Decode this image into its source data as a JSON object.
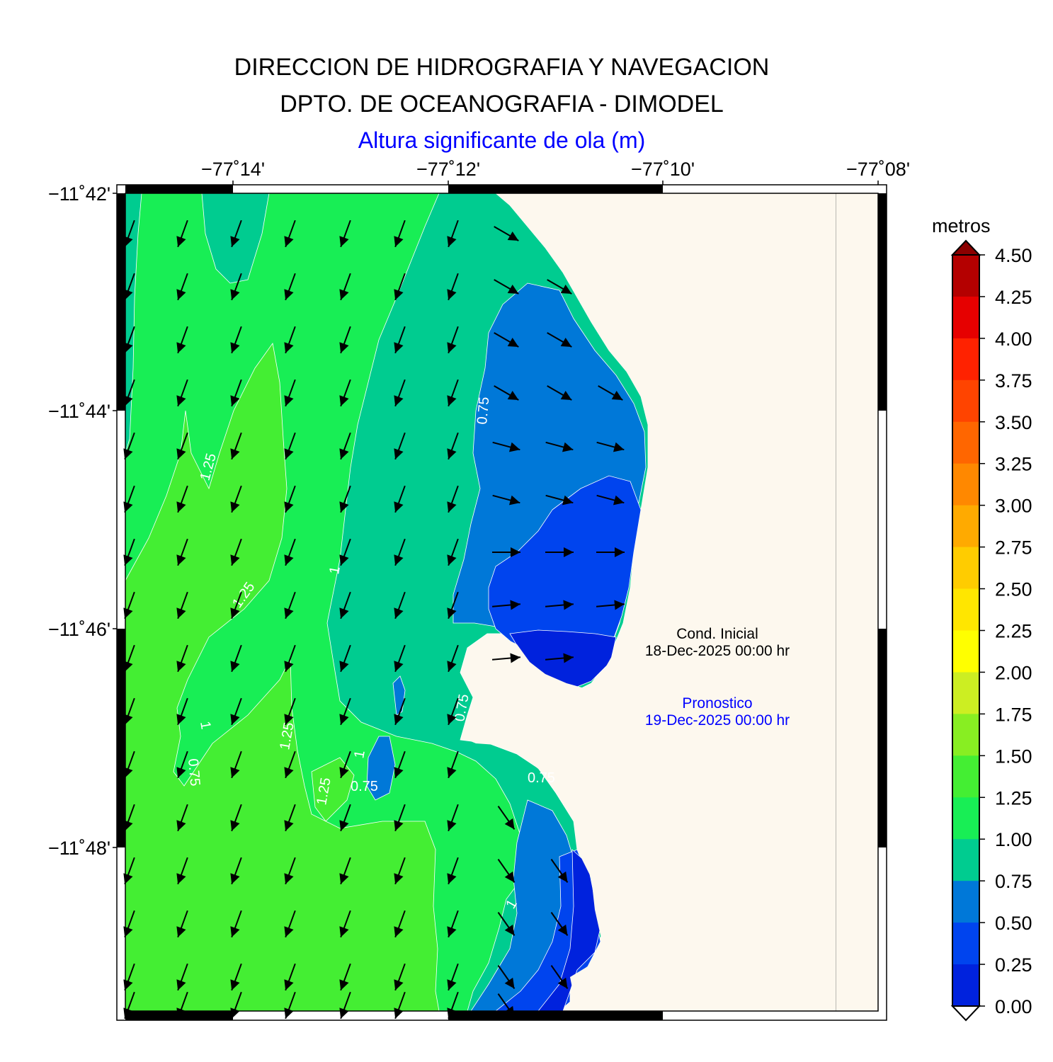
{
  "titles": {
    "line1": "DIRECCION DE HIDROGRAFIA Y NAVEGACION",
    "line2": "DPTO. DE OCEANOGRAFIA - DIMODEL",
    "line3": "Altura significante de ola (m)"
  },
  "axes": {
    "lon_ticks": [
      "−77˚14'",
      "−77˚12'",
      "−77˚10'",
      "−77˚08'"
    ],
    "lat_ticks": [
      "−11˚42'",
      "−11˚44'",
      "−11˚46'",
      "−11˚48'"
    ]
  },
  "info": {
    "initial_label": "Cond. Inicial",
    "initial_date": "18-Dec-2025 00:00 hr",
    "forecast_label": "Pronostico",
    "forecast_date": "19-Dec-2025 00:00 hr"
  },
  "colorbar": {
    "units": "metros",
    "labels": [
      "4.50",
      "4.25",
      "4.00",
      "3.75",
      "3.50",
      "3.25",
      "3.00",
      "2.75",
      "2.50",
      "2.25",
      "2.00",
      "1.75",
      "1.50",
      "1.25",
      "1.00",
      "0.75",
      "0.50",
      "0.25",
      "0.00"
    ],
    "colors": [
      "#b40000",
      "#e60000",
      "#ff2200",
      "#ff4400",
      "#ff6600",
      "#ff8800",
      "#ffaa00",
      "#ffcc00",
      "#ffe600",
      "#ffff00",
      "#ccee22",
      "#88ee22",
      "#44ee33",
      "#18ee55",
      "#00cc90",
      "#0078d8",
      "#0044ee",
      "#0022dd"
    ]
  },
  "contour_labels": [
    "0.75",
    "1.25",
    "1.25",
    "1",
    "1.25",
    "1",
    "0.75",
    "0.75",
    "1.25",
    "0.75",
    "1",
    "0.75",
    "1"
  ],
  "colors": {
    "land": "#fdf8ee",
    "zone_100_125": "#18ee55",
    "zone_125_150": "#44ee33",
    "zone_075_100": "#00cc90",
    "zone_050_075": "#0078d8",
    "zone_025_050": "#0044ee",
    "zone_000_025": "#0022dd"
  }
}
